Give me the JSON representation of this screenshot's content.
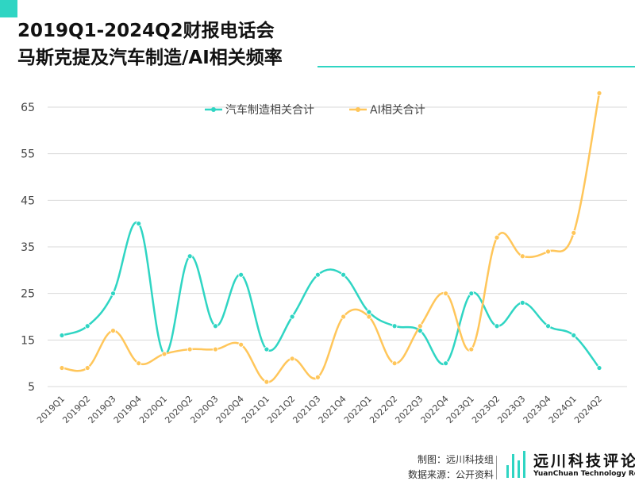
{
  "title": {
    "line1": "2019Q1-2024Q2财报电话会",
    "line2": "马斯克提及汽车制造/AI相关频率"
  },
  "colors": {
    "accent": "#2fd5c3",
    "series1": "#2fd5c3",
    "series2": "#ffc65a",
    "grid": "#d9d9d9",
    "axis": "#666666"
  },
  "chart_data": {
    "type": "line",
    "title": "2019Q1-2024Q2财报电话会 马斯克提及汽车制造/AI相关频率",
    "xlabel": "",
    "ylabel": "",
    "ylim": [
      5,
      65
    ],
    "yticks": [
      5,
      15,
      25,
      35,
      45,
      55,
      65
    ],
    "grid": true,
    "legend_position": "top-center",
    "categories": [
      "2019Q1",
      "2019Q2",
      "2019Q3",
      "2019Q4",
      "2020Q1",
      "2020Q2",
      "2020Q3",
      "2020Q4",
      "2021Q1",
      "2021Q2",
      "2021Q3",
      "2021Q4",
      "2022Q1",
      "2022Q2",
      "2022Q3",
      "2022Q4",
      "2023Q1",
      "2023Q2",
      "2023Q3",
      "2023Q4",
      "2024Q1",
      "2024Q2"
    ],
    "series": [
      {
        "name": "汽车制造相关合计",
        "color": "#2fd5c3",
        "values": [
          16,
          18,
          25,
          40,
          12,
          33,
          18,
          29,
          13,
          20,
          29,
          29,
          21,
          18,
          17,
          10,
          25,
          18,
          23,
          18,
          16,
          9
        ]
      },
      {
        "name": "AI相关合计",
        "color": "#ffc65a",
        "values": [
          9,
          9,
          17,
          10,
          12,
          13,
          13,
          14,
          6,
          11,
          7,
          20,
          20,
          10,
          18,
          25,
          13,
          37,
          33,
          34,
          38,
          68
        ]
      }
    ]
  },
  "footer": {
    "credit_maker": "制图：远川科技组",
    "credit_source": "数据来源：公开资料",
    "logo_name": "远川科技评论",
    "logo_sub": "YuanChuan Technology Review"
  }
}
